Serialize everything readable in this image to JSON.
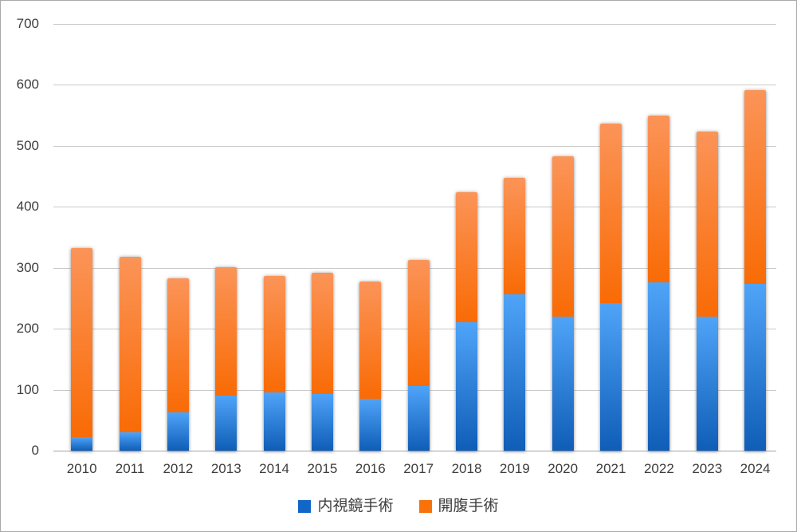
{
  "chart_data": {
    "type": "bar",
    "stacked": true,
    "title": "",
    "xlabel": "",
    "ylabel": "",
    "categories": [
      "2010",
      "2011",
      "2012",
      "2013",
      "2014",
      "2015",
      "2016",
      "2017",
      "2018",
      "2019",
      "2020",
      "2021",
      "2022",
      "2023",
      "2024"
    ],
    "series": [
      {
        "name": "内視鏡手術",
        "color": "#1266C8",
        "gradient": [
          "#4FA4F8",
          "#0F5DB7"
        ],
        "values": [
          22,
          30,
          63,
          90,
          96,
          93,
          85,
          106,
          210,
          257,
          220,
          242,
          276,
          220,
          273
        ]
      },
      {
        "name": "開腹手術",
        "color": "#F8720B",
        "gradient": [
          "#FB9458",
          "#F96B05"
        ],
        "values": [
          310,
          288,
          219,
          211,
          190,
          199,
          192,
          207,
          214,
          190,
          263,
          295,
          273,
          303,
          318
        ]
      }
    ],
    "totals": [
      332,
      318,
      282,
      301,
      286,
      292,
      277,
      313,
      424,
      447,
      483,
      537,
      549,
      523,
      591
    ],
    "ylim": [
      0,
      700
    ],
    "yticks": [
      0,
      100,
      200,
      300,
      400,
      500,
      600,
      700
    ],
    "grid": true,
    "legend_position": "bottom",
    "colors": {
      "gridline": "#C9C9C9",
      "axis_line": "#A4A4A4",
      "tick_text": "#3D3D3D"
    }
  }
}
